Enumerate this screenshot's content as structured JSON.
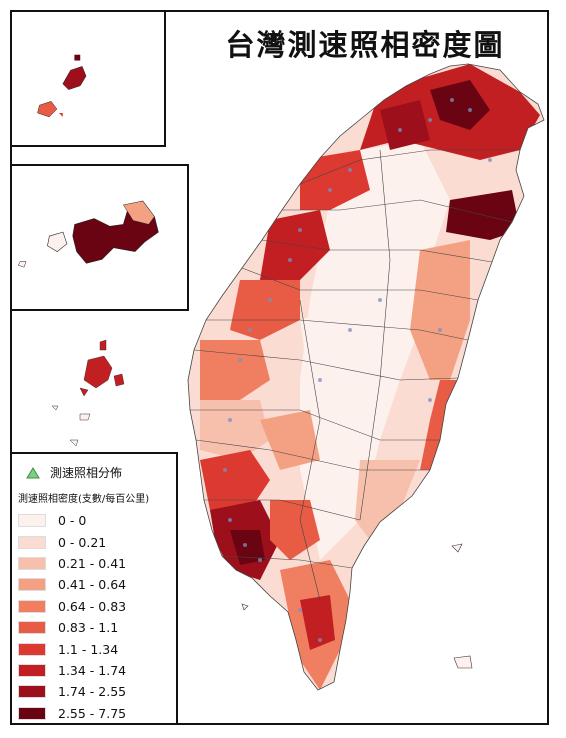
{
  "title": "台灣測速照相密度圖",
  "legend": {
    "point_label": "測速照相分佈",
    "point_color": "#7ecf86",
    "density_title": "測速照相密度(支數/每百公里)",
    "classes": [
      {
        "label": "0 - 0",
        "color": "#fdf1ee"
      },
      {
        "label": "0 - 0.21",
        "color": "#fbdcd3"
      },
      {
        "label": "0.21 - 0.41",
        "color": "#f7c0ad"
      },
      {
        "label": "0.41 - 0.64",
        "color": "#f4a183"
      },
      {
        "label": "0.64 - 0.83",
        "color": "#f07f62"
      },
      {
        "label": "0.83 - 1.1",
        "color": "#e85b45"
      },
      {
        "label": "1.1 - 1.34",
        "color": "#dc3a30"
      },
      {
        "label": "1.34 - 1.74",
        "color": "#c21f22"
      },
      {
        "label": "1.74 - 2.55",
        "color": "#9c0f1b"
      },
      {
        "label": "2.55 - 7.75",
        "color": "#6b0412"
      }
    ]
  }
}
